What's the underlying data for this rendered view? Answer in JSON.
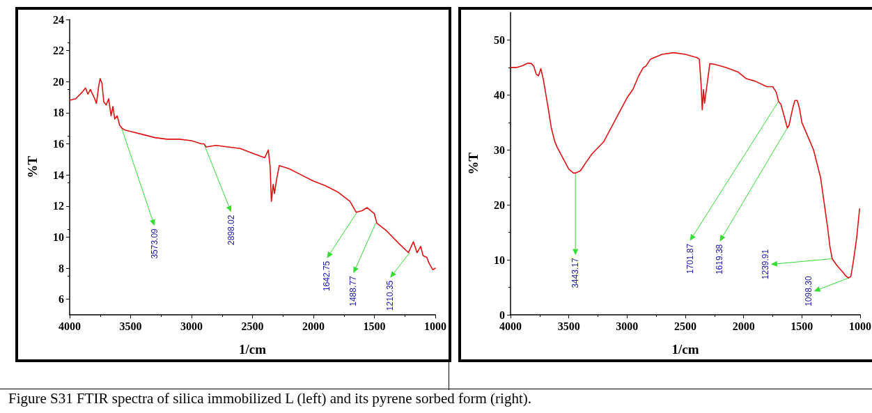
{
  "chart_data": [
    {
      "type": "line",
      "xlabel": "1/cm",
      "ylabel": "%T",
      "xlim": [
        4000,
        1000
      ],
      "xticks": [
        4000,
        3500,
        3000,
        2500,
        2000,
        1500,
        1000
      ],
      "ylim": [
        5,
        24
      ],
      "yticks": [
        6,
        8,
        10,
        12,
        14,
        16,
        18,
        20,
        22,
        24
      ],
      "marker": "none",
      "line_style": "solid",
      "x": [
        4000,
        3950,
        3900,
        3870,
        3850,
        3830,
        3800,
        3780,
        3760,
        3750,
        3735,
        3720,
        3700,
        3680,
        3660,
        3645,
        3630,
        3610,
        3590,
        3570,
        3550,
        3500,
        3400,
        3300,
        3200,
        3100,
        3000,
        2920,
        2898,
        2880,
        2800,
        2700,
        2600,
        2500,
        2400,
        2370,
        2355,
        2345,
        2330,
        2320,
        2300,
        2280,
        2200,
        2100,
        2000,
        1900,
        1800,
        1700,
        1650,
        1600,
        1560,
        1500,
        1480,
        1400,
        1300,
        1220,
        1180,
        1150,
        1120,
        1100,
        1070,
        1050,
        1020,
        1000
      ],
      "series": [
        {
          "color": "#dd1111",
          "values": [
            18.8,
            18.9,
            19.3,
            19.6,
            19.2,
            19.5,
            19.0,
            18.6,
            19.8,
            20.2,
            19.9,
            18.7,
            18.5,
            18.9,
            17.8,
            18.4,
            17.6,
            17.8,
            17.2,
            17.0,
            16.9,
            16.8,
            16.6,
            16.4,
            16.3,
            16.3,
            16.2,
            16.0,
            16.0,
            15.8,
            15.9,
            15.8,
            15.7,
            15.4,
            15.1,
            15.6,
            14.5,
            12.3,
            13.4,
            12.8,
            13.8,
            14.6,
            14.4,
            14.0,
            13.6,
            13.3,
            12.9,
            12.3,
            11.6,
            11.7,
            11.9,
            11.5,
            10.9,
            10.4,
            9.6,
            9.0,
            9.7,
            9.0,
            9.4,
            8.8,
            8.7,
            8.3,
            7.9,
            8.0
          ]
        }
      ],
      "annotations": [
        {
          "text": "3573.09",
          "x": 3573,
          "y": 17.0
        },
        {
          "text": "2898.02",
          "x": 2898,
          "y": 16.0
        },
        {
          "text": "1642.75",
          "x": 1643,
          "y": 11.6
        },
        {
          "text": "1488.77",
          "x": 1489,
          "y": 10.9
        },
        {
          "text": "1210.35",
          "x": 1210,
          "y": 9.0
        },
        "Figure S31 FTIR spectra of silica immobilized L (left) and its pyrene sorbed form (right)."
      ]
    },
    {
      "type": "line",
      "xlabel": "1/cm",
      "ylabel": "%T",
      "xlim": [
        4000,
        1000
      ],
      "xticks": [
        4000,
        3500,
        3000,
        2500,
        2000,
        1500,
        1000
      ],
      "ylim": [
        0,
        55
      ],
      "yticks": [
        0,
        10,
        20,
        30,
        40,
        50
      ],
      "marker": "none",
      "line_style": "solid",
      "x": [
        4000,
        3950,
        3900,
        3850,
        3820,
        3800,
        3780,
        3760,
        3740,
        3720,
        3700,
        3680,
        3650,
        3620,
        3600,
        3550,
        3500,
        3460,
        3443,
        3400,
        3350,
        3300,
        3200,
        3100,
        3000,
        2950,
        2900,
        2860,
        2840,
        2800,
        2700,
        2600,
        2500,
        2400,
        2380,
        2365,
        2355,
        2345,
        2335,
        2310,
        2290,
        2250,
        2150,
        2050,
        1980,
        1900,
        1800,
        1750,
        1720,
        1700,
        1680,
        1650,
        1625,
        1610,
        1580,
        1560,
        1540,
        1520,
        1500,
        1470,
        1430,
        1400,
        1370,
        1340,
        1310,
        1280,
        1260,
        1240,
        1200,
        1150,
        1120,
        1098,
        1080,
        1060,
        1030,
        1005
      ],
      "series": [
        {
          "color": "#dd1111",
          "values": [
            45.0,
            45.0,
            45.3,
            45.8,
            45.7,
            45.2,
            43.8,
            43.5,
            44.8,
            43.0,
            40.5,
            38.0,
            34.0,
            31.5,
            30.5,
            28.5,
            26.5,
            25.8,
            25.8,
            26.2,
            27.8,
            29.3,
            31.5,
            35.5,
            39.5,
            41.0,
            43.5,
            45.0,
            45.2,
            46.5,
            47.4,
            47.7,
            47.4,
            46.8,
            46.5,
            42.0,
            37.3,
            41.0,
            38.5,
            42.5,
            45.7,
            45.6,
            45.0,
            44.2,
            43.0,
            42.5,
            41.5,
            41.5,
            40.5,
            38.8,
            38.3,
            36.0,
            34.0,
            34.5,
            37.5,
            39.0,
            39.0,
            37.5,
            35.0,
            33.5,
            31.5,
            30.0,
            27.5,
            25.0,
            20.5,
            16.0,
            12.5,
            10.2,
            9.0,
            7.8,
            7.0,
            6.7,
            7.0,
            9.5,
            14.0,
            19.3
          ]
        }
      ],
      "annotations": [
        {
          "text": "3443.17",
          "x": 3443,
          "y": 25.8
        },
        {
          "text": "1701.87",
          "x": 1702,
          "y": 38.8
        },
        {
          "text": "1619.38",
          "x": 1625,
          "y": 34.0
        },
        {
          "text": "1239.91",
          "x": 1240,
          "y": 10.2
        },
        {
          "text": "1098.30",
          "x": 1098,
          "y": 6.7
        }
      ]
    }
  ]
}
